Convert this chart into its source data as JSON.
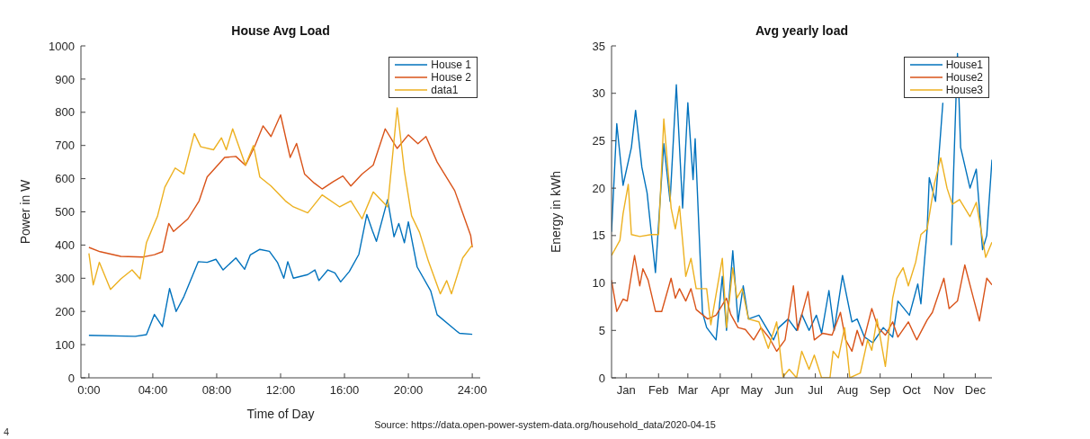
{
  "chart_data": [
    {
      "type": "line",
      "title": "House Avg Load",
      "xlabel": "Time of Day",
      "ylabel": "Power in W",
      "legend": "top right",
      "grid": false,
      "line_style": "solid",
      "xlim": [
        -0.5,
        24.5
      ],
      "xticks": [
        {
          "value": 0,
          "label": "0:00"
        },
        {
          "value": 4,
          "label": "04:00"
        },
        {
          "value": 8,
          "label": "08:00"
        },
        {
          "value": 12,
          "label": "12:00"
        },
        {
          "value": 16,
          "label": "16:00"
        },
        {
          "value": 20,
          "label": "20:00"
        },
        {
          "value": 24,
          "label": "24:00"
        }
      ],
      "ylim": [
        0,
        1000
      ],
      "yticks": [
        0,
        100,
        200,
        300,
        400,
        500,
        600,
        700,
        800,
        900,
        1000
      ],
      "annotations": [
        "4",
        "Source: https://data.open-power-system-data.org/household_data/2020-04-15"
      ],
      "series": [
        {
          "name": "House 1",
          "color": "#0072bd",
          "x": [
            0,
            2.9,
            3.6,
            4.1,
            4.6,
            5.05,
            5.46,
            5.95,
            6.85,
            7.4,
            7.95,
            8.4,
            9.2,
            9.75,
            10.1,
            10.7,
            11.3,
            11.8,
            12.2,
            12.45,
            12.8,
            13.7,
            14.15,
            14.4,
            14.96,
            15.4,
            15.76,
            16.3,
            16.9,
            17.4,
            17.75,
            18,
            18.7,
            19.1,
            19.4,
            19.75,
            20,
            20.55,
            21.4,
            21.8,
            22.7,
            23.2,
            24
          ],
          "values": [
            128,
            125,
            130,
            191,
            154,
            269,
            200,
            245,
            350,
            348,
            357,
            325,
            361,
            327,
            370,
            387,
            381,
            348,
            300,
            350,
            300,
            311,
            325,
            293,
            325,
            316,
            289,
            320,
            372,
            492,
            443,
            411,
            537,
            425,
            465,
            407,
            470,
            334,
            262,
            190,
            154,
            134,
            131
          ]
        },
        {
          "name": "House 2",
          "color": "#d95319",
          "x": [
            0,
            0.7,
            2,
            3.4,
            4.1,
            4.6,
            5,
            5.3,
            6.2,
            6.9,
            7.4,
            8.5,
            9.2,
            9.8,
            10.4,
            10.9,
            11.4,
            12,
            12.6,
            13,
            13.5,
            14.1,
            14.6,
            15.3,
            15.9,
            16.4,
            17.1,
            17.8,
            18.55,
            19.3,
            20,
            20.6,
            21.1,
            21.8,
            22.9,
            23.9,
            24
          ],
          "values": [
            393,
            380,
            366,
            364,
            371,
            380,
            465,
            441,
            479,
            533,
            605,
            664,
            667,
            640,
            700,
            759,
            727,
            792,
            664,
            706,
            614,
            587,
            569,
            591,
            608,
            578,
            614,
            641,
            750,
            691,
            732,
            705,
            727,
            650,
            564,
            429,
            393
          ]
        },
        {
          "name": "data1",
          "color": "#edb120",
          "x": [
            0,
            0.27,
            0.65,
            1.35,
            2,
            2.7,
            3.2,
            3.6,
            4.3,
            4.75,
            5.4,
            5.95,
            6.6,
            7,
            7.8,
            8.3,
            8.6,
            9,
            9.8,
            10.3,
            10.7,
            11.4,
            12.3,
            12.8,
            13.7,
            14.6,
            15.7,
            16.4,
            17.1,
            17.8,
            18.7,
            19.3,
            19.75,
            20.2,
            20.7,
            21.25,
            22,
            22.4,
            22.7,
            23.4,
            24
          ],
          "values": [
            375,
            280,
            348,
            266,
            298,
            325,
            298,
            407,
            488,
            574,
            632,
            614,
            736,
            696,
            687,
            723,
            687,
            750,
            641,
            700,
            605,
            578,
            533,
            515,
            497,
            551,
            515,
            533,
            479,
            560,
            515,
            813,
            623,
            488,
            438,
            352,
            253,
            293,
            253,
            361,
            400
          ]
        }
      ]
    },
    {
      "type": "line",
      "title": "Avg yearly load",
      "ylabel": "Energy in kWh",
      "legend": "top right",
      "grid": false,
      "line_style": "solid",
      "xlim": [
        "--01-01",
        "--12-31"
      ],
      "xticks": [
        {
          "value": "--01-15",
          "label": "Jan"
        },
        {
          "value": "--02-15",
          "label": "Feb"
        },
        {
          "value": "--03-15",
          "label": "Mar"
        },
        {
          "value": "--04-15",
          "label": "Apr"
        },
        {
          "value": "--05-15",
          "label": "May"
        },
        {
          "value": "--06-15",
          "label": "Jun"
        },
        {
          "value": "--07-15",
          "label": "Jul"
        },
        {
          "value": "--08-15",
          "label": "Aug"
        },
        {
          "value": "--09-15",
          "label": "Sep"
        },
        {
          "value": "--10-15",
          "label": "Oct"
        },
        {
          "value": "--11-15",
          "label": "Nov"
        },
        {
          "value": "--12-15",
          "label": "Dec"
        }
      ],
      "ylim": [
        0,
        35
      ],
      "yticks": [
        0,
        5,
        10,
        15,
        20,
        25,
        30,
        35
      ],
      "series": [
        {
          "name": "House1",
          "color": "#0072bd",
          "x": [
            "--01-01",
            "--01-06",
            "--01-12",
            "--01-20",
            "--01-24",
            "--01-30",
            "--02-04",
            "--02-12",
            "--02-20",
            "--02-26",
            "--03-04",
            "--03-10",
            "--03-15",
            "--03-20",
            "--03-22",
            "--03-29",
            "--04-02",
            "--04-11",
            "--04-17",
            "--04-21",
            "--04-27",
            "--05-02",
            "--05-07",
            "--05-12",
            "--05-22",
            "--06-05",
            "--06-10",
            "--06-19",
            "--06-27",
            "--07-02",
            "--07-09",
            "--07-16",
            "--07-21",
            "--07-28",
            "--08-02",
            "--08-10",
            "--08-19",
            "--08-24",
            "--08-31",
            "--09-08",
            "--09-18",
            "--09-27",
            "--10-02",
            "--10-13",
            "--10-21",
            "--10-24",
            "--10-30",
            "--11-01",
            "--11-07",
            "--11-14",
            "--11-16",
            "--11-22",
            "--11-28",
            "--12-01",
            "--12-10",
            "--12-16",
            "--12-22",
            "--12-26",
            "--12-31"
          ],
          "values": [
            15.4,
            26.8,
            20.3,
            24.3,
            28.2,
            22.2,
            19.5,
            11.1,
            24.7,
            18.6,
            30.9,
            17.9,
            29,
            20.9,
            25.2,
            6.9,
            5.3,
            4,
            10.7,
            5,
            13.4,
            5.9,
            9.7,
            6.2,
            6.6,
            4,
            5.3,
            6.2,
            5,
            6.7,
            5,
            6.6,
            4.7,
            9.2,
            5,
            10.8,
            5.9,
            6.2,
            4.3,
            3.7,
            5.3,
            4.3,
            8.1,
            6.6,
            9.9,
            7.8,
            15.7,
            21.1,
            18.6,
            29,
            null,
            14,
            34.2,
            24.3,
            20,
            22,
            13.5,
            15,
            23
          ]
        },
        {
          "name": "House2",
          "color": "#d95319",
          "x": [
            "--01-01",
            "--01-06",
            "--01-12",
            "--01-16",
            "--01-23",
            "--01-28",
            "--01-31",
            "--02-05",
            "--02-12",
            "--02-18",
            "--02-27",
            "--03-03",
            "--03-07",
            "--03-13",
            "--03-18",
            "--03-23",
            "--04-03",
            "--04-11",
            "--04-21",
            "--04-25",
            "--05-02",
            "--05-09",
            "--05-17",
            "--05-24",
            "--06-01",
            "--06-08",
            "--06-16",
            "--06-24",
            "--06-28",
            "--07-08",
            "--07-14",
            "--07-22",
            "--07-31",
            "--08-08",
            "--08-13",
            "--08-19",
            "--08-24",
            "--08-29",
            "--09-07",
            "--09-13",
            "--09-20",
            "--09-27",
            "--10-02",
            "--10-12",
            "--10-20",
            "--10-30",
            "--11-04",
            "--11-15",
            "--11-20",
            "--11-28",
            "--12-05",
            "--12-13",
            "--12-19",
            "--12-26",
            "--12-31"
          ],
          "values": [
            10.3,
            7,
            8.3,
            8.1,
            12.9,
            9.7,
            11.5,
            10.3,
            7,
            7,
            10.5,
            8.4,
            9.4,
            8.1,
            9.4,
            7.2,
            6.2,
            6.6,
            8.4,
            6.7,
            5.3,
            5.1,
            4,
            5.3,
            4.2,
            2.8,
            4,
            9.7,
            5,
            9.1,
            4,
            4.7,
            4.5,
            6.9,
            4,
            2.8,
            5,
            3.4,
            7.3,
            5.3,
            4.5,
            5.9,
            4.3,
            5.9,
            4,
            6.1,
            6.9,
            10.5,
            7.3,
            8.1,
            11.9,
            8.5,
            6,
            10.5,
            9.8
          ]
        },
        {
          "name": "House3",
          "color": "#edb120",
          "x": [
            "--01-01",
            "--01-09",
            "--01-12",
            "--01-17",
            "--01-20",
            "--01-28",
            "--02-08",
            "--02-15",
            "--02-20",
            "--02-27",
            "--03-03",
            "--03-07",
            "--03-13",
            "--03-18",
            "--03-23",
            "--04-02",
            "--04-06",
            "--04-17",
            "--04-21",
            "--04-27",
            "--05-01",
            "--05-06",
            "--05-12",
            "--05-22",
            "--05-31",
            "--06-08",
            "--06-14",
            "--06-20",
            "--06-27",
            "--07-02",
            "--07-09",
            "--07-14",
            "--07-21",
            "--07-29",
            "--08-01",
            "--08-06",
            "--08-12",
            "--08-17",
            "--08-27",
            "--09-03",
            "--09-07",
            "--09-12",
            "--09-20",
            "--09-27",
            "--10-01",
            "--10-07",
            "--10-12",
            "--10-19",
            "--10-24",
            "--10-30",
            "--11-06",
            "--11-12",
            "--11-18",
            "--11-23",
            "--11-30",
            "--12-10",
            "--12-16",
            "--12-25",
            "--12-31"
          ],
          "values": [
            12.9,
            14.5,
            17.3,
            20.4,
            15.1,
            14.9,
            15.1,
            15.1,
            27.3,
            17.9,
            15.7,
            18.1,
            10.7,
            12.6,
            9.4,
            9.4,
            5.6,
            12.6,
            5.3,
            11.6,
            8.4,
            9.4,
            6.2,
            5.9,
            3.1,
            5.9,
            0.1,
            0.9,
            0,
            2.8,
            0.9,
            2.4,
            0,
            0,
            2.8,
            2.1,
            5.3,
            0,
            0.5,
            4,
            2.9,
            6.2,
            1.2,
            8.4,
            10.5,
            11.6,
            9.7,
            12.2,
            15.1,
            15.7,
            20.5,
            23.2,
            20,
            18.3,
            18.8,
            17,
            18.5,
            12.7,
            14.3
          ]
        }
      ]
    }
  ]
}
